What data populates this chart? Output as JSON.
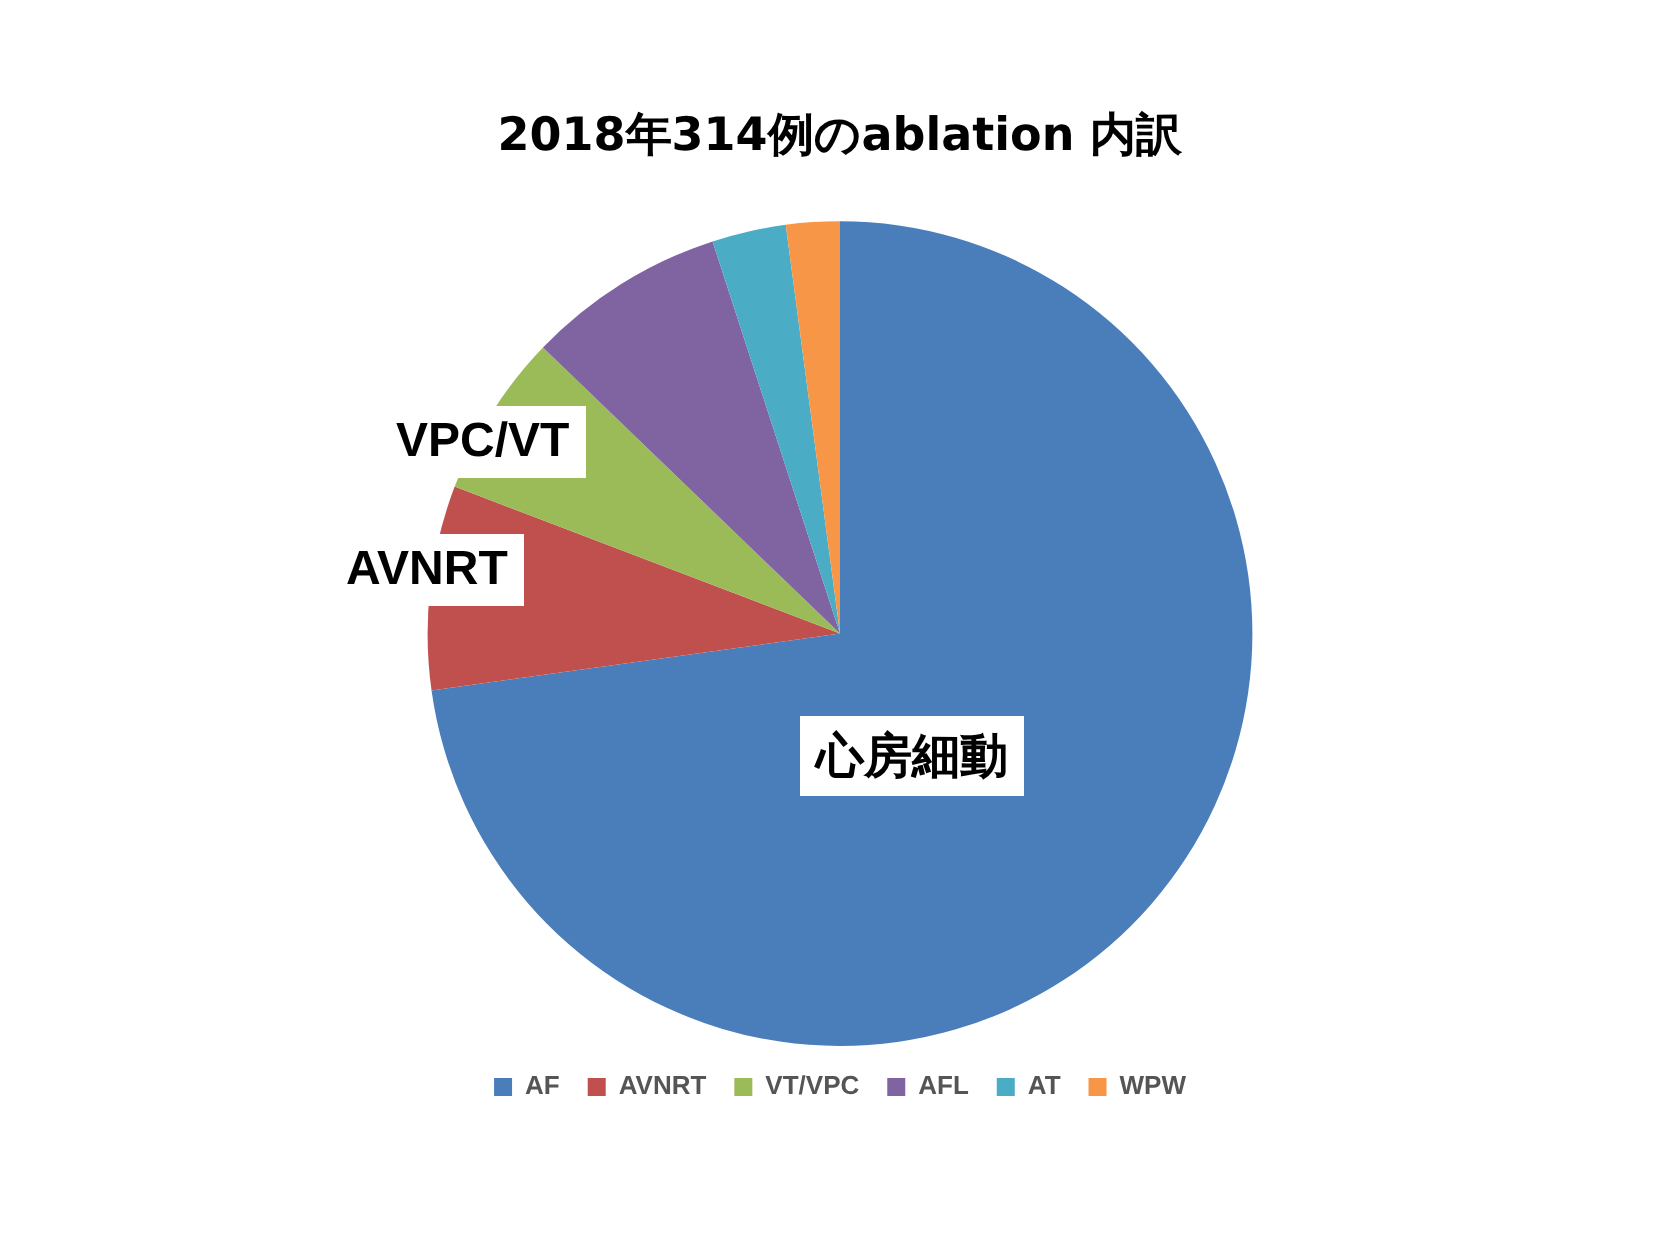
{
  "chart_data": {
    "type": "pie",
    "title": "2018年314例のablation 内訳",
    "categories": [
      "AF",
      "AVNRT",
      "VT/VPC",
      "AFL",
      "AT",
      "WPW"
    ],
    "values": [
      72.8,
      8.0,
      6.4,
      7.8,
      2.9,
      2.1
    ],
    "colors": [
      "#4a7ebb",
      "#c0504d",
      "#9bbb59",
      "#8064a2",
      "#4bacc6",
      "#f79646"
    ],
    "annotations": [
      "心房細動",
      "AVNRT",
      "VPC/VT"
    ],
    "legend": "bottom"
  }
}
